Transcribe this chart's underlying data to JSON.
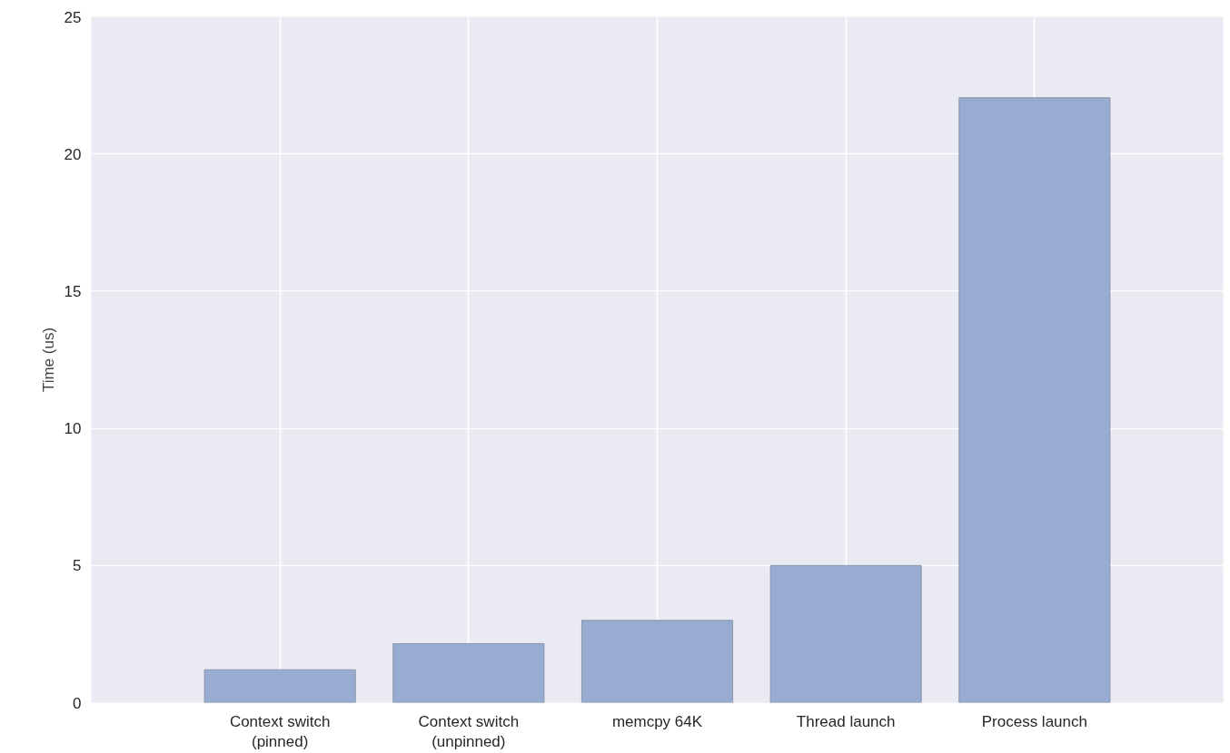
{
  "chart_data": {
    "type": "bar",
    "ylabel": "Time (us)",
    "categories": [
      "Context switch\n(pinned)",
      "Context switch\n(unpinned)",
      "memcpy 64K",
      "Thread launch",
      "Process launch"
    ],
    "values": [
      1.2,
      2.15,
      3.0,
      5.0,
      22.05
    ],
    "color": "#98abd0",
    "ylim": [
      0,
      25
    ],
    "yticks": [
      0,
      5,
      10,
      15,
      20,
      25
    ],
    "grid": true
  }
}
